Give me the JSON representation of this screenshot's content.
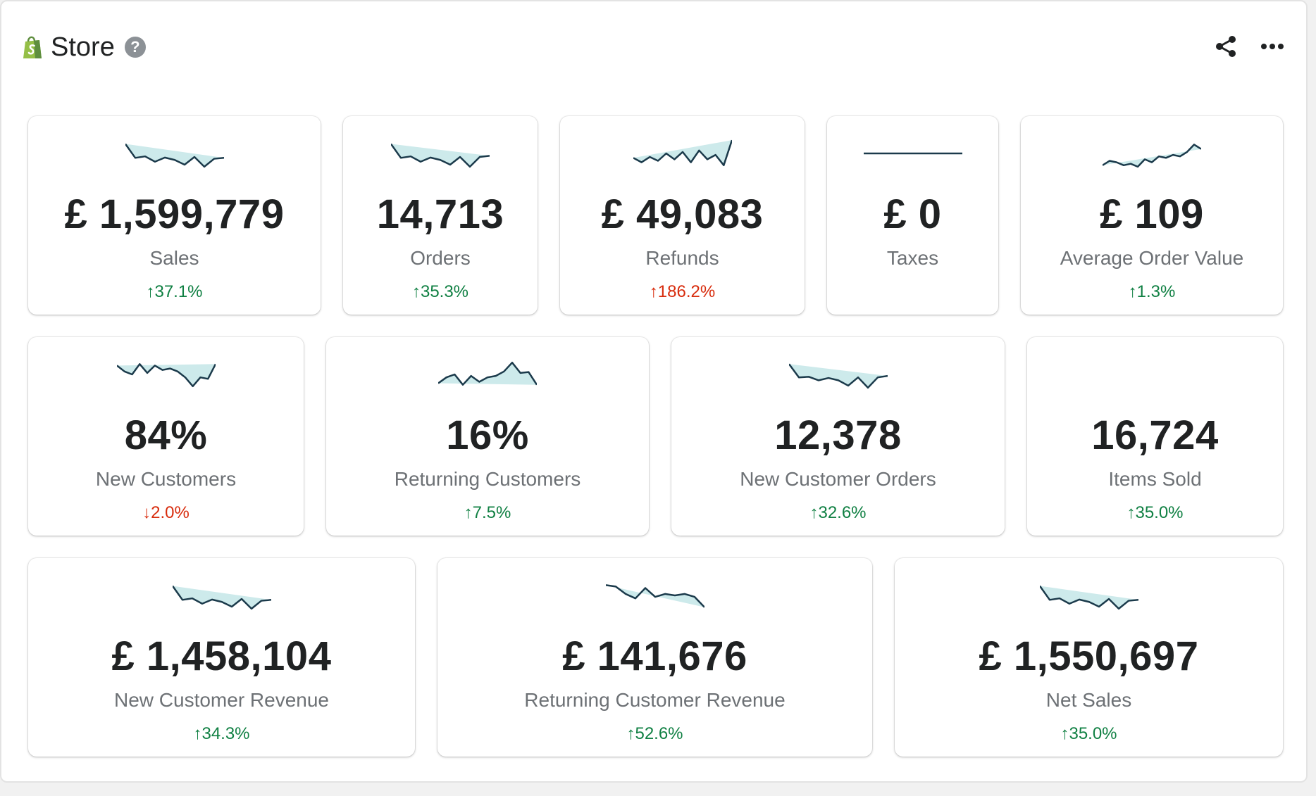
{
  "header": {
    "title": "Store",
    "help_label": "?",
    "icons": [
      "shopify-bag-icon",
      "help-icon",
      "share-icon",
      "more-icon"
    ]
  },
  "colors": {
    "positive": "#108043",
    "negative": "#d82c0d",
    "spark_line": "#1b3a4b",
    "spark_fill": "#b8e1e3",
    "brand": "#95bf47"
  },
  "metrics": [
    {
      "id": "sales",
      "value": "£ 1,599,779",
      "label": "Sales",
      "change": "↑37.1%",
      "trend": "up-good",
      "spark": [
        0.82,
        0.35,
        0.4,
        0.22,
        0.36,
        0.28,
        0.12,
        0.38,
        0.05,
        0.32,
        0.35
      ]
    },
    {
      "id": "orders",
      "value": "14,713",
      "label": "Orders",
      "change": "↑35.3%",
      "trend": "up-good",
      "spark": [
        0.82,
        0.35,
        0.4,
        0.22,
        0.36,
        0.28,
        0.12,
        0.38,
        0.05,
        0.38,
        0.42
      ]
    },
    {
      "id": "refunds",
      "value": "£ 49,083",
      "label": "Refunds",
      "change": "↑186.2%",
      "trend": "up-bad",
      "spark": [
        0.35,
        0.2,
        0.38,
        0.25,
        0.5,
        0.3,
        0.55,
        0.2,
        0.6,
        0.3,
        0.45,
        0.1,
        0.95
      ]
    },
    {
      "id": "taxes",
      "value": "£ 0",
      "label": "Taxes",
      "change": "",
      "trend": "none",
      "spark": [
        0.5,
        0.5
      ]
    },
    {
      "id": "aov",
      "value": "£ 109",
      "label": "Average Order Value",
      "change": "↑1.3%",
      "trend": "up-good",
      "spark": [
        0.1,
        0.25,
        0.2,
        0.1,
        0.15,
        0.05,
        0.3,
        0.2,
        0.4,
        0.35,
        0.45,
        0.4,
        0.55,
        0.8,
        0.65
      ]
    },
    {
      "id": "new-customers",
      "value": "84%",
      "label": "New Customers",
      "change": "↓2.0%",
      "trend": "down-bad",
      "spark": [
        0.8,
        0.6,
        0.5,
        0.85,
        0.55,
        0.8,
        0.65,
        0.7,
        0.6,
        0.4,
        0.1,
        0.4,
        0.35,
        0.85
      ]
    },
    {
      "id": "returning-customers",
      "value": "16%",
      "label": "Returning Customers",
      "change": "↑7.5%",
      "trend": "up-good",
      "spark": [
        0.2,
        0.4,
        0.5,
        0.15,
        0.45,
        0.25,
        0.4,
        0.45,
        0.6,
        0.9,
        0.55,
        0.58,
        0.15
      ]
    },
    {
      "id": "new-customer-orders",
      "value": "12,378",
      "label": "New Customer Orders",
      "change": "↑32.6%",
      "trend": "up-good",
      "spark": [
        0.85,
        0.4,
        0.42,
        0.3,
        0.38,
        0.3,
        0.12,
        0.4,
        0.05,
        0.4,
        0.45
      ]
    },
    {
      "id": "items-sold",
      "value": "16,724",
      "label": "Items Sold",
      "change": "↑35.0%",
      "trend": "up-good",
      "spark": []
    },
    {
      "id": "new-customer-revenue",
      "value": "£ 1,458,104",
      "label": "New Customer Revenue",
      "change": "↑34.3%",
      "trend": "up-good",
      "spark": [
        0.82,
        0.35,
        0.4,
        0.22,
        0.36,
        0.28,
        0.12,
        0.38,
        0.05,
        0.32,
        0.35
      ]
    },
    {
      "id": "returning-customer-revenue",
      "value": "£ 141,676",
      "label": "Returning Customer Revenue",
      "change": "↑52.6%",
      "trend": "up-good",
      "spark": [
        0.85,
        0.8,
        0.55,
        0.4,
        0.75,
        0.45,
        0.55,
        0.5,
        0.55,
        0.45,
        0.1
      ]
    },
    {
      "id": "net-sales",
      "value": "£ 1,550,697",
      "label": "Net Sales",
      "change": "↑35.0%",
      "trend": "up-good",
      "spark": [
        0.82,
        0.35,
        0.4,
        0.22,
        0.36,
        0.28,
        0.12,
        0.38,
        0.05,
        0.32,
        0.35
      ]
    }
  ]
}
